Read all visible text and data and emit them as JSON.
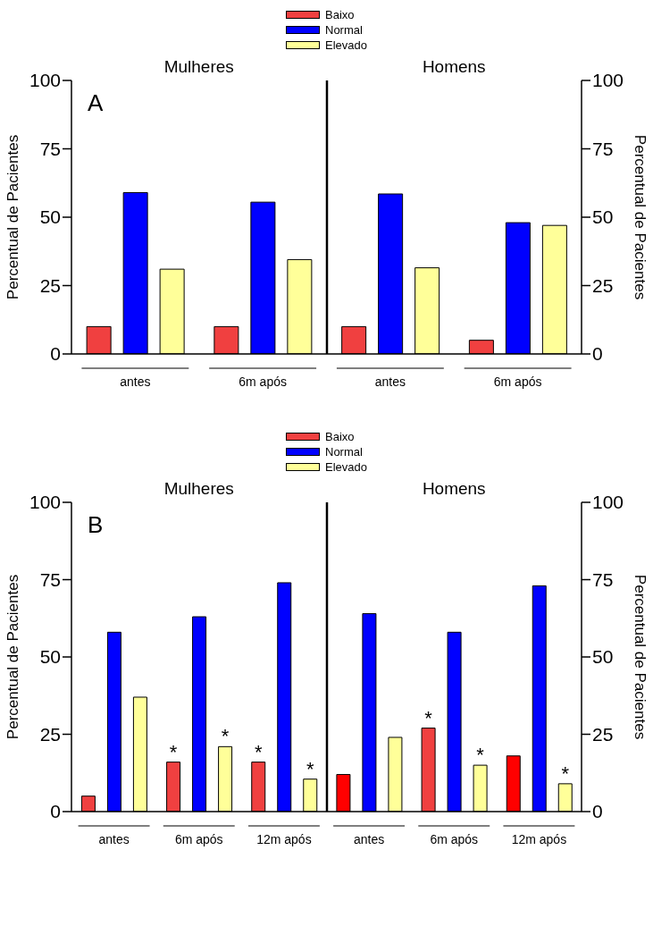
{
  "chart_data": [
    {
      "type": "bar",
      "title": "A",
      "categories": [
        "antes",
        "6m após",
        "antes",
        "6m após"
      ],
      "series": [
        {
          "name": "Baixo",
          "color": "#f04040",
          "values": [
            10,
            10,
            10,
            5
          ]
        },
        {
          "name": "Normal",
          "color": "#0000ff",
          "values": [
            59,
            55.5,
            58.5,
            48
          ]
        },
        {
          "name": "Elevado",
          "color": "#ffff99",
          "values": [
            31,
            34.5,
            31.5,
            47
          ]
        }
      ],
      "ylabel": "Percentual de Pacientes",
      "y2label": "Percentual de Pacientes",
      "ylim": [
        0,
        100
      ],
      "yticks": [
        0,
        25,
        50,
        75,
        100
      ],
      "y2lim": [
        0,
        100
      ],
      "y2ticks": [
        0,
        25,
        50,
        75,
        100
      ],
      "annotations": [
        "Mulheres",
        "Homens"
      ],
      "legend": "top"
    },
    {
      "type": "bar",
      "title": "B",
      "categories": [
        "antes",
        "6m após",
        "12m após",
        "antes",
        "6m após",
        "12m após"
      ],
      "series": [
        {
          "name": "Baixo",
          "color": "#f04040",
          "colors": [
            "#f04040",
            "#f04040",
            "#f04040",
            "#ff0000",
            "#f04040",
            "#ff0000"
          ],
          "values": [
            5,
            16,
            16,
            12,
            27,
            18
          ],
          "value_labels": [
            null,
            "*",
            "*",
            null,
            "*",
            null
          ]
        },
        {
          "name": "Normal",
          "color": "#0000ff",
          "values": [
            58,
            63,
            74,
            64,
            58,
            73
          ]
        },
        {
          "name": "Elevado",
          "color": "#ffff99",
          "values": [
            37,
            21,
            10.5,
            24,
            15,
            9
          ],
          "value_labels": [
            null,
            "*",
            "*",
            null,
            "*",
            "*"
          ]
        }
      ],
      "ylabel": "Percentual de Pacientes",
      "y2label": "Percentual de Pacientes",
      "ylim": [
        0,
        100
      ],
      "yticks": [
        0,
        25,
        50,
        75,
        100
      ],
      "y2lim": [
        0,
        100
      ],
      "y2ticks": [
        0,
        25,
        50,
        75,
        100
      ],
      "annotations": [
        "Mulheres",
        "Homens"
      ],
      "legend": "top"
    }
  ]
}
